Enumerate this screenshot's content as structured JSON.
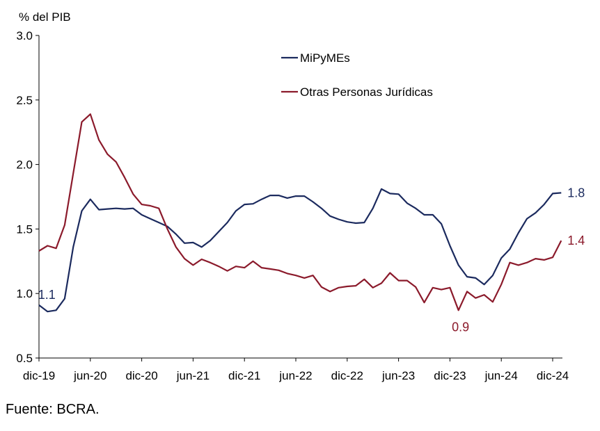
{
  "chart_data": {
    "type": "line",
    "y_unit": "% del PIB",
    "ylim": [
      0.5,
      3.0
    ],
    "y_ticks": [
      "0.5",
      "1.0",
      "1.5",
      "2.0",
      "2.5",
      "3.0"
    ],
    "x_tick_labels": [
      "dic-19",
      "jun-20",
      "dic-20",
      "jun-21",
      "dic-21",
      "jun-22",
      "dic-22",
      "jun-23",
      "dic-23",
      "jun-24",
      "dic-24"
    ],
    "grid": false,
    "legend_position": "top-center",
    "series": [
      {
        "name": "MiPyMEs",
        "color": "#1b2a5e",
        "values": [
          0.91,
          0.86,
          0.87,
          0.96,
          1.36,
          1.64,
          1.73,
          1.65,
          1.655,
          1.66,
          1.655,
          1.66,
          1.61,
          1.58,
          1.55,
          1.52,
          1.46,
          1.39,
          1.395,
          1.36,
          1.41,
          1.48,
          1.55,
          1.64,
          1.69,
          1.695,
          1.73,
          1.76,
          1.76,
          1.74,
          1.755,
          1.755,
          1.71,
          1.66,
          1.6,
          1.575,
          1.555,
          1.545,
          1.55,
          1.66,
          1.81,
          1.775,
          1.77,
          1.7,
          1.66,
          1.61,
          1.61,
          1.54,
          1.37,
          1.22,
          1.13,
          1.12,
          1.07,
          1.14,
          1.275,
          1.345,
          1.47,
          1.58,
          1.625,
          1.69,
          1.775,
          1.78
        ]
      },
      {
        "name": "Otras Personas Jurídicas",
        "color": "#8b1a2b",
        "values": [
          1.33,
          1.37,
          1.35,
          1.53,
          1.93,
          2.33,
          2.39,
          2.19,
          2.08,
          2.02,
          1.9,
          1.77,
          1.69,
          1.68,
          1.66,
          1.5,
          1.36,
          1.27,
          1.22,
          1.265,
          1.24,
          1.21,
          1.175,
          1.21,
          1.2,
          1.25,
          1.2,
          1.19,
          1.18,
          1.155,
          1.14,
          1.12,
          1.14,
          1.05,
          1.015,
          1.045,
          1.055,
          1.06,
          1.11,
          1.045,
          1.08,
          1.16,
          1.1,
          1.1,
          1.05,
          0.93,
          1.045,
          1.03,
          1.045,
          0.87,
          1.015,
          0.965,
          0.99,
          0.935,
          1.07,
          1.24,
          1.22,
          1.24,
          1.27,
          1.26,
          1.28,
          1.41
        ]
      }
    ],
    "annotations": [
      {
        "series": 0,
        "text": "1.1",
        "at": "min"
      },
      {
        "series": 1,
        "text": "0.9",
        "at": "min"
      },
      {
        "series": 0,
        "text": "1.8",
        "at": "end"
      },
      {
        "series": 1,
        "text": "1.4",
        "at": "end"
      }
    ]
  },
  "source": "Fuente: BCRA."
}
